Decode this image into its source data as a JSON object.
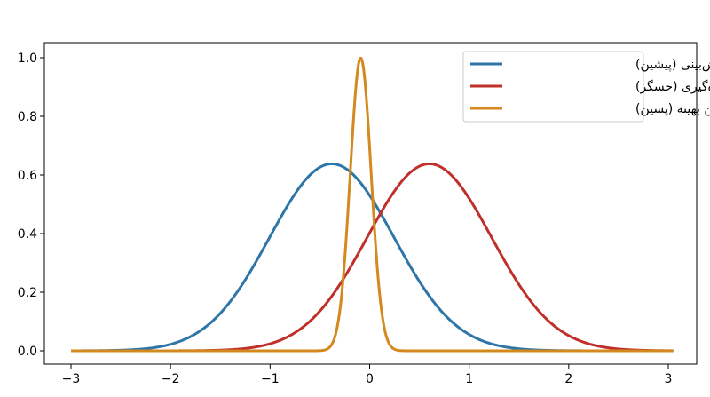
{
  "chart_data": {
    "type": "line",
    "title": "",
    "xlabel": "",
    "ylabel": "",
    "xlim": [
      -3.0,
      3.05
    ],
    "ylim": [
      0.0,
      1.0
    ],
    "x_ticks": [
      {
        "value": -3,
        "label": "−3"
      },
      {
        "value": -2,
        "label": "−2"
      },
      {
        "value": -1,
        "label": "−1"
      },
      {
        "value": 0,
        "label": "0"
      },
      {
        "value": 1,
        "label": "1"
      },
      {
        "value": 2,
        "label": "2"
      },
      {
        "value": 3,
        "label": "3"
      }
    ],
    "y_ticks": [
      {
        "value": 0.0,
        "label": "0.0"
      },
      {
        "value": 0.2,
        "label": "0.2"
      },
      {
        "value": 0.4,
        "label": "0.4"
      },
      {
        "value": 0.6,
        "label": "0.6"
      },
      {
        "value": 0.8,
        "label": "0.8"
      },
      {
        "value": 1.0,
        "label": "1.0"
      }
    ],
    "grid": false,
    "legend_position": "top-right",
    "series": [
      {
        "name": "پیش‌بینی (پیشین)",
        "color": "#2e75a8",
        "mean": -0.38,
        "sd": 0.625,
        "peak": 0.638
      },
      {
        "name": "اندازه‌گیری (حسگر)",
        "color": "#c0302b",
        "mean": 0.6,
        "sd": 0.625,
        "peak": 0.638
      },
      {
        "name": "تخمین بهینه (پسین)",
        "color": "#d4891e",
        "mean": -0.09,
        "sd": 0.105,
        "peak": 1.0
      }
    ]
  }
}
